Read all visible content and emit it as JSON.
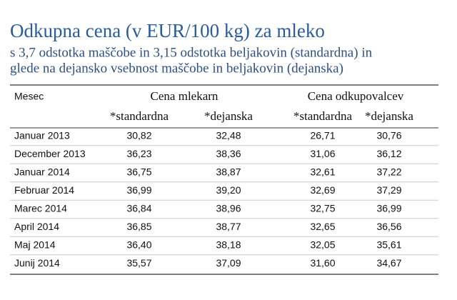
{
  "header": {
    "title": "Odkupna cena (v EUR/100 kg) za mleko",
    "subtitle": [
      "s 3,7 odstotka maščobe in 3,15 odstotka beljakovin (standardna) in",
      "glede na dejansko vsebnost maščobe in beljakovin (dejanska)"
    ]
  },
  "table": {
    "first_column": "Mesec",
    "groups": [
      "Cena mlekarn",
      "Cena odkupovalcev"
    ],
    "columns": [
      "*standardna",
      "*dejanska",
      "*standardna",
      "*dejanska"
    ],
    "rows": [
      [
        "Januar 2013",
        "30,82",
        "32,48",
        "26,71",
        "30,76"
      ],
      [
        "December 2013",
        "36,23",
        "38,36",
        "31,06",
        "36,12"
      ],
      [
        "Januar 2014",
        "36,75",
        "38,87",
        "32,61",
        "37,22"
      ],
      [
        "Februar 2014",
        "36,99",
        "39,20",
        "32,69",
        "37,29"
      ],
      [
        "Marec 2014",
        "36,84",
        "38,96",
        "32,75",
        "36,99"
      ],
      [
        "April 2014",
        "36,85",
        "38,77",
        "32,65",
        "36,56"
      ],
      [
        "Maj 2014",
        "36,40",
        "38,18",
        "32,05",
        "35,61"
      ],
      [
        "Junij 2014",
        "35,57",
        "37,09",
        "31,60",
        "34,67"
      ]
    ]
  }
}
